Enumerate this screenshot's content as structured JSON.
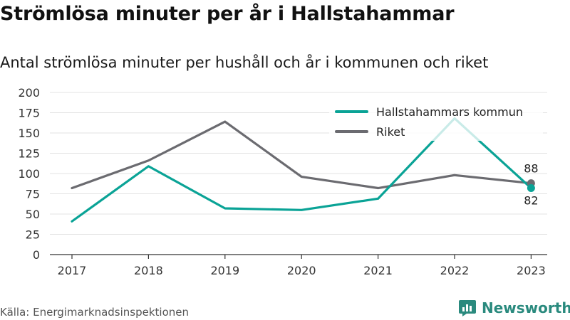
{
  "title": "Strömlösa minuter per år i Hallstahammar",
  "subtitle": "Antal strömlösa minuter per hushåll och år i kommunen och riket",
  "source": "Källa: Energimarknadsinspektionen",
  "brand": {
    "name": "Newsworthy",
    "icon": "newsworthy-logo-icon"
  },
  "chart_data": {
    "type": "line",
    "x": [
      "2017",
      "2018",
      "2019",
      "2020",
      "2021",
      "2022",
      "2023"
    ],
    "ylim": [
      0,
      200
    ],
    "yticks": [
      0,
      25,
      50,
      75,
      100,
      125,
      150,
      175,
      200
    ],
    "grid": true,
    "legend_position": "top-right",
    "series": [
      {
        "name": "Hallstahammars kommun",
        "color": "#0aa396",
        "values": [
          41,
          109,
          57,
          55,
          69,
          168,
          82
        ]
      },
      {
        "name": "Riket",
        "color": "#6b6b70",
        "values": [
          82,
          116,
          164,
          96,
          82,
          98,
          88
        ]
      }
    ],
    "end_labels": {
      "Riket": "88",
      "Hallstahammars kommun": "82"
    }
  }
}
